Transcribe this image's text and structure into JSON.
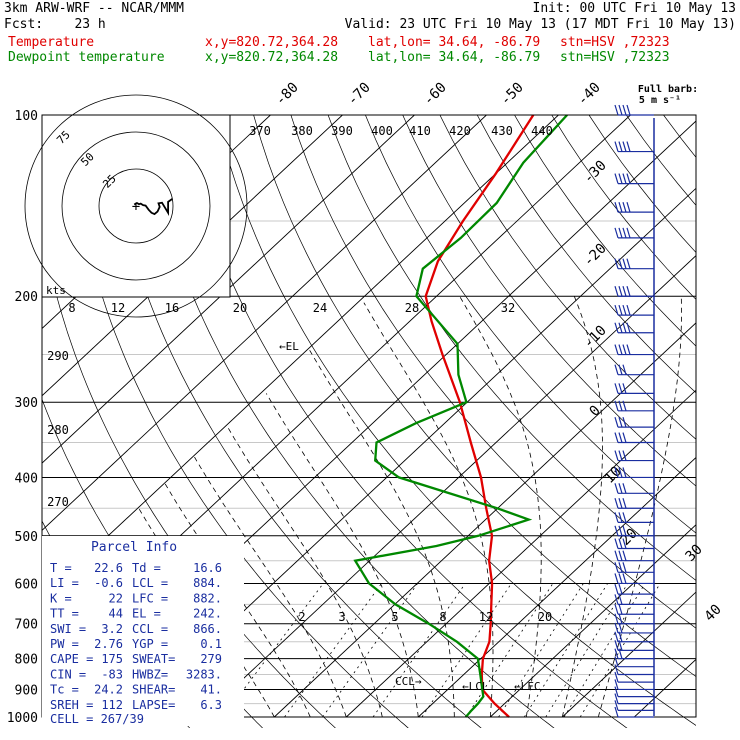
{
  "header": {
    "model": "3km ARW-WRF -- NCAR/MMM",
    "init": "Init: 00 UTC Fri 10 May 13",
    "fcst": "Fcst:    23 h",
    "valid": "Valid: 23 UTC Fri 10 May 13 (17 MDT Fri 10 May 13)",
    "temp_label": "Temperature",
    "dew_label": "Dewpoint temperature",
    "xy": "x,y=820.72,364.28",
    "latlon": "lat,lon= 34.64, -86.79",
    "stn": "stn=HSV ,72323"
  },
  "wind_key": {
    "title": "Full barb:",
    "units": "5 m s⁻¹"
  },
  "hodograph": {
    "units_label": "kts",
    "ring_labels": [
      "25",
      "50",
      "75"
    ],
    "points": [
      [
        -1.2,
        1.0
      ],
      [
        0.6,
        2.0
      ],
      [
        2.0,
        1.2
      ],
      [
        3.2,
        1.6
      ],
      [
        4.8,
        0.6
      ],
      [
        6.5,
        0.3
      ],
      [
        8.5,
        -2.5
      ],
      [
        10.5,
        -4.6
      ],
      [
        12.5,
        -5.5
      ],
      [
        14.5,
        -3.8
      ],
      [
        16.0,
        -0.6
      ],
      [
        15.2,
        1.8
      ],
      [
        17.6,
        2.2
      ],
      [
        21.7,
        -4.6
      ],
      [
        21.7,
        2.8
      ],
      [
        24.5,
        4.8
      ]
    ]
  },
  "chart_data": {
    "type": "skew-t",
    "pressure_ticks": [
      100,
      200,
      300,
      400,
      500,
      600,
      700,
      800,
      900,
      1000
    ],
    "isotherm_labels": [
      -80,
      -70,
      -60,
      -50,
      -40,
      -30,
      -20,
      -10,
      0,
      10,
      20,
      30,
      40
    ],
    "theta_labels": [
      270,
      280,
      290,
      370,
      380,
      390,
      400,
      410,
      420,
      430,
      440
    ],
    "mixing_ratio_labels_top": [
      8,
      12,
      16,
      20,
      24,
      28,
      32
    ],
    "mixing_ratio_labels_bottom": [
      2,
      3,
      5,
      8,
      12,
      20
    ],
    "temperature": {
      "name": "Temperature",
      "color": "#e00000",
      "points": [
        [
          1000,
          22.6
        ],
        [
          950,
          18.6
        ],
        [
          900,
          14.8
        ],
        [
          850,
          12.5
        ],
        [
          800,
          10.3
        ],
        [
          750,
          8.7
        ],
        [
          700,
          6.2
        ],
        [
          650,
          3.4
        ],
        [
          600,
          0.4
        ],
        [
          550,
          -3.4
        ],
        [
          500,
          -6.7
        ],
        [
          450,
          -11.6
        ],
        [
          400,
          -16.9
        ],
        [
          350,
          -23.5
        ],
        [
          300,
          -31.0
        ],
        [
          250,
          -40.5
        ],
        [
          220,
          -47.0
        ],
        [
          200,
          -51.5
        ],
        [
          175,
          -55.0
        ],
        [
          150,
          -57.5
        ],
        [
          125,
          -60.0
        ],
        [
          110,
          -62.0
        ],
        [
          100,
          -63.5
        ]
      ]
    },
    "dewpoint": {
      "name": "Dewpoint temperature",
      "color": "#008800",
      "points": [
        [
          1000,
          16.6
        ],
        [
          975,
          16.4
        ],
        [
          950,
          16.3
        ],
        [
          925,
          16.0
        ],
        [
          900,
          14.8
        ],
        [
          850,
          12.3
        ],
        [
          800,
          9.6
        ],
        [
          750,
          4.2
        ],
        [
          700,
          -2.4
        ],
        [
          650,
          -9.9
        ],
        [
          600,
          -16.7
        ],
        [
          550,
          -22.0
        ],
        [
          520,
          -12.9
        ],
        [
          500,
          -8.6
        ],
        [
          470,
          -4.0
        ],
        [
          450,
          -10.1
        ],
        [
          400,
          -28.3
        ],
        [
          375,
          -34.1
        ],
        [
          350,
          -36.6
        ],
        [
          325,
          -34.0
        ],
        [
          300,
          -30.1
        ],
        [
          270,
          -35.3
        ],
        [
          240,
          -40.0
        ],
        [
          200,
          -52.8
        ],
        [
          180,
          -56.0
        ],
        [
          160,
          -55.3
        ],
        [
          140,
          -55.5
        ],
        [
          120,
          -57.8
        ],
        [
          100,
          -58.8
        ]
      ]
    },
    "levels": [
      {
        "label": "EL",
        "p": 242,
        "t": -41.1
      },
      {
        "label": "LCL",
        "p": 884,
        "t": 13.9
      },
      {
        "label": "LFC",
        "p": 882,
        "t": 19.2
      },
      {
        "label": "CCL",
        "p": 866,
        "t": 6.5
      }
    ],
    "wind_pressures": [
      100,
      115,
      130,
      145,
      160,
      180,
      200,
      215,
      230,
      250,
      270,
      290,
      310,
      330,
      350,
      375,
      400,
      425,
      450,
      475,
      500,
      525,
      550,
      575,
      600,
      625,
      650,
      675,
      700,
      725,
      750,
      775,
      800,
      825,
      850,
      875,
      900,
      925,
      950,
      975,
      1000
    ]
  },
  "parcel": {
    "title": "Parcel Info",
    "rows": [
      [
        "T  =",
        "22.6",
        "Td =",
        "16.6"
      ],
      [
        "LI =",
        "-0.6",
        "LCL =",
        "884."
      ],
      [
        "K  =",
        "22",
        "LFC =",
        "882."
      ],
      [
        "TT =",
        "44",
        "EL  =",
        "242."
      ],
      [
        "SWI =",
        "3.2",
        "CCL =",
        "866."
      ],
      [
        "PW =",
        "2.76",
        "YGP =",
        "0.1"
      ],
      [
        "CAPE =",
        "175",
        "SWEAT=",
        "279"
      ],
      [
        "CIN =",
        "-83",
        "HWBZ=",
        "3283."
      ],
      [
        "Tc =",
        "24.2",
        "SHEAR=",
        "41."
      ],
      [
        "SREH =",
        "112",
        "LAPSE=",
        "6.3"
      ]
    ],
    "cell": "CELL = 267/39"
  }
}
